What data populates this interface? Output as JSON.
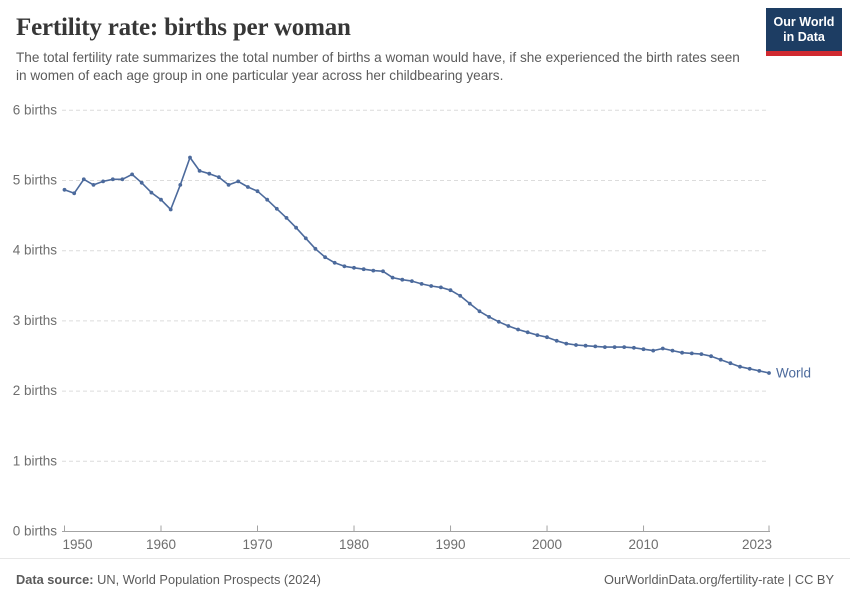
{
  "header": {
    "title": "Fertility rate: births per woman",
    "subtitle": "The total fertility rate summarizes the total number of births a woman would have, if she experienced the birth rates seen in women of each age group in one particular year across her childbearing years.",
    "logo": {
      "line1": "Our World",
      "line2": "in Data",
      "bg": "#1d3d63",
      "bar": "#d02a30"
    }
  },
  "chart_data": {
    "type": "line",
    "title": "Fertility rate: births per woman",
    "xlabel": "",
    "ylabel": "",
    "xlim": [
      1950,
      2023
    ],
    "ylim": [
      0,
      6
    ],
    "grid": "horizontal-dashed",
    "legend": "end-of-line-label",
    "end_label": "World",
    "x_tick_values": [
      1950,
      1960,
      1970,
      1980,
      1990,
      2000,
      2010,
      2023
    ],
    "x_tick_labels": [
      "1950",
      "1960",
      "1970",
      "1980",
      "1990",
      "2000",
      "2010",
      "2023"
    ],
    "y_tick_values": [
      0,
      1,
      2,
      3,
      4,
      5,
      6
    ],
    "y_tick_labels": [
      "0 births",
      "1 births",
      "2 births",
      "3 births",
      "4 births",
      "5 births",
      "6 births"
    ],
    "x": [
      1950,
      1951,
      1952,
      1953,
      1954,
      1955,
      1956,
      1957,
      1958,
      1959,
      1960,
      1961,
      1962,
      1963,
      1964,
      1965,
      1966,
      1967,
      1968,
      1969,
      1970,
      1971,
      1972,
      1973,
      1974,
      1975,
      1976,
      1977,
      1978,
      1979,
      1980,
      1981,
      1982,
      1983,
      1984,
      1985,
      1986,
      1987,
      1988,
      1989,
      1990,
      1991,
      1992,
      1993,
      1994,
      1995,
      1996,
      1997,
      1998,
      1999,
      2000,
      2001,
      2002,
      2003,
      2004,
      2005,
      2006,
      2007,
      2008,
      2009,
      2010,
      2011,
      2012,
      2013,
      2014,
      2015,
      2016,
      2017,
      2018,
      2019,
      2020,
      2021,
      2022,
      2023
    ],
    "series": [
      {
        "name": "World",
        "color": "#4C6A9C",
        "values": [
          4.86,
          4.81,
          5.01,
          4.93,
          4.98,
          5.01,
          5.01,
          5.08,
          4.96,
          4.82,
          4.72,
          4.58,
          4.93,
          5.32,
          5.13,
          5.09,
          5.04,
          4.93,
          4.98,
          4.9,
          4.84,
          4.72,
          4.59,
          4.46,
          4.32,
          4.17,
          4.02,
          3.9,
          3.82,
          3.77,
          3.75,
          3.73,
          3.71,
          3.7,
          3.61,
          3.58,
          3.56,
          3.52,
          3.49,
          3.47,
          3.43,
          3.35,
          3.24,
          3.13,
          3.05,
          2.98,
          2.92,
          2.87,
          2.83,
          2.79,
          2.76,
          2.71,
          2.67,
          2.65,
          2.64,
          2.63,
          2.62,
          2.62,
          2.62,
          2.61,
          2.59,
          2.57,
          2.6,
          2.57,
          2.54,
          2.53,
          2.52,
          2.49,
          2.44,
          2.39,
          2.34,
          2.31,
          2.28,
          2.25
        ]
      }
    ]
  },
  "footer": {
    "source_bold": "Data source:",
    "source_text": "UN, World Population Prospects (2024)",
    "right_text": "OurWorldinData.org/fertility-rate | CC BY"
  },
  "colors": {
    "line": "#4C6A9C",
    "grid": "#dcdcdc",
    "axis": "#a3a3a3",
    "tick_text": "#6e6e6e",
    "title_text": "#373737",
    "subtitle_text": "#5b5b5b",
    "footer_text": "#5b5b5b"
  }
}
